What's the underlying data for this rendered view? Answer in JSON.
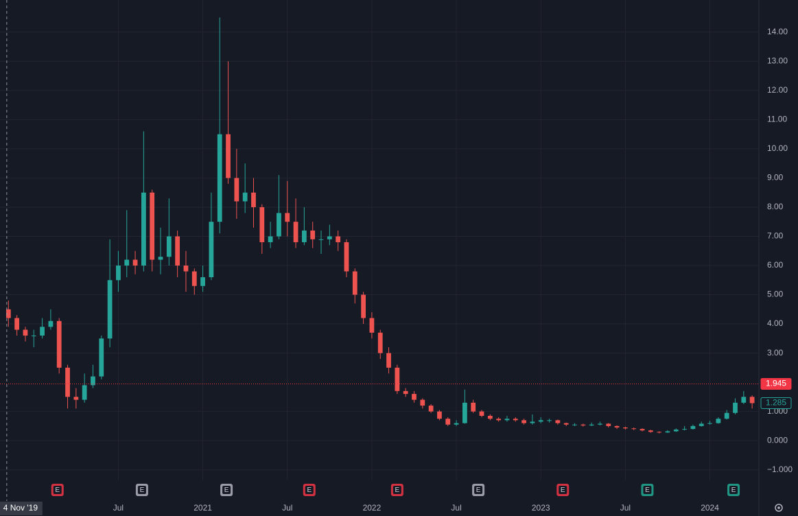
{
  "chart_data": {
    "type": "candlestick",
    "up_color": "#26a69a",
    "down_color": "#ef5350",
    "grid": true,
    "xlim": [
      2019.8,
      2024.29
    ],
    "ylim": [
      -1.36,
      15.1
    ],
    "yticks": [
      {
        "value": 14,
        "label": "14.00"
      },
      {
        "value": 13,
        "label": "13.00"
      },
      {
        "value": 12,
        "label": "12.00"
      },
      {
        "value": 11,
        "label": "11.00"
      },
      {
        "value": 10,
        "label": "10.00"
      },
      {
        "value": 9,
        "label": "9.00"
      },
      {
        "value": 8,
        "label": "8.00"
      },
      {
        "value": 7,
        "label": "7.00"
      },
      {
        "value": 6,
        "label": "6.00"
      },
      {
        "value": 5,
        "label": "5.00"
      },
      {
        "value": 4,
        "label": "4.00"
      },
      {
        "value": 3,
        "label": "3.00"
      },
      {
        "value": 1,
        "label": "1.000"
      },
      {
        "value": 0,
        "label": "0.000"
      },
      {
        "value": -1,
        "label": "−1.000"
      }
    ],
    "xticks": [
      {
        "value": 2020.5,
        "label": "Jul"
      },
      {
        "value": 2021,
        "label": "2021"
      },
      {
        "value": 2021.5,
        "label": "Jul"
      },
      {
        "value": 2022,
        "label": "2022"
      },
      {
        "value": 2022.5,
        "label": "Jul"
      },
      {
        "value": 2023,
        "label": "2023"
      },
      {
        "value": 2023.5,
        "label": "Jul"
      },
      {
        "value": 2024,
        "label": "2024"
      }
    ],
    "crosshair": {
      "x": 2019.84,
      "label": "4 Nov '19"
    },
    "price_lines": [
      {
        "value": 1.945,
        "color": "#f23645",
        "style": "dotted"
      },
      {
        "value": 1.285,
        "color": "#26a69a",
        "style": "none"
      }
    ],
    "events": [
      {
        "x": 2020.14,
        "label": "E",
        "color": "#f23645"
      },
      {
        "x": 2020.64,
        "label": "E",
        "color": "#b2b5be"
      },
      {
        "x": 2021.14,
        "label": "E",
        "color": "#b2b5be"
      },
      {
        "x": 2021.63,
        "label": "E",
        "color": "#f23645"
      },
      {
        "x": 2022.15,
        "label": "E",
        "color": "#f23645"
      },
      {
        "x": 2022.63,
        "label": "E",
        "color": "#b2b5be"
      },
      {
        "x": 2023.13,
        "label": "E",
        "color": "#f23645"
      },
      {
        "x": 2023.63,
        "label": "E",
        "color": "#22ab94"
      },
      {
        "x": 2024.14,
        "label": "E",
        "color": "#22ab94"
      }
    ],
    "x": [
      2019.85,
      2019.9,
      2019.95,
      2020,
      2020.05,
      2020.1,
      2020.15,
      2020.2,
      2020.25,
      2020.3,
      2020.35,
      2020.4,
      2020.45,
      2020.5,
      2020.55,
      2020.6,
      2020.65,
      2020.7,
      2020.75,
      2020.8,
      2020.85,
      2020.9,
      2020.95,
      2021,
      2021.05,
      2021.1,
      2021.15,
      2021.2,
      2021.25,
      2021.3,
      2021.35,
      2021.4,
      2021.45,
      2021.5,
      2021.55,
      2021.6,
      2021.65,
      2021.7,
      2021.75,
      2021.8,
      2021.85,
      2021.9,
      2021.95,
      2022,
      2022.05,
      2022.1,
      2022.15,
      2022.2,
      2022.25,
      2022.3,
      2022.35,
      2022.4,
      2022.45,
      2022.5,
      2022.55,
      2022.6,
      2022.65,
      2022.7,
      2022.75,
      2022.8,
      2022.85,
      2022.9,
      2022.95,
      2023,
      2023.05,
      2023.1,
      2023.15,
      2023.2,
      2023.25,
      2023.3,
      2023.35,
      2023.4,
      2023.45,
      2023.5,
      2023.55,
      2023.6,
      2023.65,
      2023.7,
      2023.75,
      2023.8,
      2023.85,
      2023.9,
      2023.95,
      2024,
      2024.05,
      2024.1,
      2024.15,
      2024.2,
      2024.25
    ],
    "open": [
      4.5,
      4.2,
      3.8,
      3.6,
      3.6,
      3.9,
      4.1,
      2.5,
      1.5,
      1.4,
      1.9,
      2.2,
      3.5,
      5.5,
      6.0,
      6.2,
      6.0,
      8.5,
      6.2,
      6.3,
      7.0,
      6.0,
      5.8,
      5.3,
      5.6,
      7.5,
      10.5,
      9.0,
      8.2,
      8.5,
      8.0,
      6.8,
      7.0,
      7.8,
      7.5,
      6.8,
      7.2,
      6.9,
      6.9,
      7.0,
      6.8,
      5.8,
      5.0,
      4.2,
      3.7,
      3.0,
      2.5,
      1.7,
      1.6,
      1.4,
      1.2,
      1.0,
      0.75,
      0.55,
      0.6,
      1.3,
      1.0,
      0.85,
      0.75,
      0.7,
      0.75,
      0.7,
      0.6,
      0.65,
      0.7,
      0.7,
      0.6,
      0.55,
      0.55,
      0.52,
      0.55,
      0.58,
      0.5,
      0.45,
      0.42,
      0.4,
      0.35,
      0.3,
      0.28,
      0.32,
      0.38,
      0.4,
      0.5,
      0.58,
      0.6,
      0.75,
      0.95,
      1.3,
      1.5
    ],
    "high": [
      4.8,
      4.3,
      3.9,
      3.8,
      4.2,
      4.5,
      4.2,
      2.6,
      1.8,
      2.3,
      2.6,
      3.6,
      6.9,
      6.5,
      7.9,
      6.5,
      10.6,
      8.6,
      7.3,
      8.3,
      7.2,
      6.5,
      5.9,
      6.0,
      8.5,
      14.5,
      13.0,
      10.0,
      9.5,
      9.0,
      8.1,
      7.5,
      9.1,
      8.9,
      8.3,
      8.0,
      7.5,
      7.2,
      7.4,
      7.2,
      6.9,
      5.9,
      5.1,
      4.4,
      3.8,
      3.2,
      2.6,
      1.8,
      1.7,
      1.45,
      1.25,
      1.05,
      0.8,
      0.7,
      1.75,
      1.4,
      1.05,
      0.9,
      0.8,
      0.85,
      0.8,
      0.75,
      0.9,
      0.8,
      0.75,
      0.72,
      0.62,
      0.6,
      0.58,
      0.62,
      0.65,
      0.6,
      0.52,
      0.48,
      0.45,
      0.42,
      0.37,
      0.32,
      0.36,
      0.42,
      0.5,
      0.55,
      0.65,
      0.68,
      0.8,
      1.05,
      1.45,
      1.7,
      1.55
    ],
    "low": [
      3.9,
      3.6,
      3.4,
      3.2,
      3.5,
      3.8,
      2.3,
      1.1,
      1.1,
      1.3,
      1.8,
      2.1,
      3.2,
      5.1,
      5.6,
      5.7,
      5.8,
      5.8,
      5.7,
      6.0,
      5.6,
      5.1,
      5.0,
      5.1,
      5.5,
      7.1,
      8.8,
      7.6,
      7.8,
      7.3,
      6.4,
      6.6,
      6.9,
      7.0,
      6.6,
      6.7,
      6.6,
      6.4,
      6.7,
      6.5,
      5.6,
      4.7,
      4.0,
      3.5,
      2.8,
      2.3,
      1.6,
      1.5,
      1.3,
      1.1,
      0.95,
      0.7,
      0.5,
      0.5,
      0.58,
      0.95,
      0.8,
      0.7,
      0.65,
      0.65,
      0.65,
      0.55,
      0.55,
      0.6,
      0.62,
      0.55,
      0.5,
      0.5,
      0.48,
      0.5,
      0.52,
      0.45,
      0.4,
      0.38,
      0.36,
      0.32,
      0.27,
      0.25,
      0.26,
      0.3,
      0.35,
      0.38,
      0.48,
      0.55,
      0.58,
      0.72,
      0.9,
      1.25,
      1.1
    ],
    "close": [
      4.2,
      3.8,
      3.6,
      3.6,
      3.9,
      4.1,
      2.5,
      1.5,
      1.4,
      1.9,
      2.2,
      3.5,
      5.5,
      6.0,
      6.2,
      6.0,
      8.5,
      6.2,
      6.3,
      7.0,
      6.0,
      5.8,
      5.3,
      5.6,
      7.5,
      10.5,
      9.0,
      8.2,
      8.5,
      8.0,
      6.8,
      7.0,
      7.8,
      7.5,
      6.8,
      7.2,
      6.9,
      6.9,
      7.0,
      6.8,
      5.8,
      5.0,
      4.2,
      3.7,
      3.0,
      2.5,
      1.7,
      1.6,
      1.4,
      1.2,
      1.0,
      0.75,
      0.55,
      0.6,
      1.3,
      1.0,
      0.85,
      0.75,
      0.7,
      0.75,
      0.7,
      0.6,
      0.65,
      0.7,
      0.7,
      0.6,
      0.55,
      0.55,
      0.52,
      0.55,
      0.58,
      0.5,
      0.45,
      0.42,
      0.4,
      0.35,
      0.3,
      0.28,
      0.32,
      0.38,
      0.4,
      0.5,
      0.58,
      0.6,
      0.75,
      0.95,
      1.3,
      1.5,
      1.285
    ]
  }
}
